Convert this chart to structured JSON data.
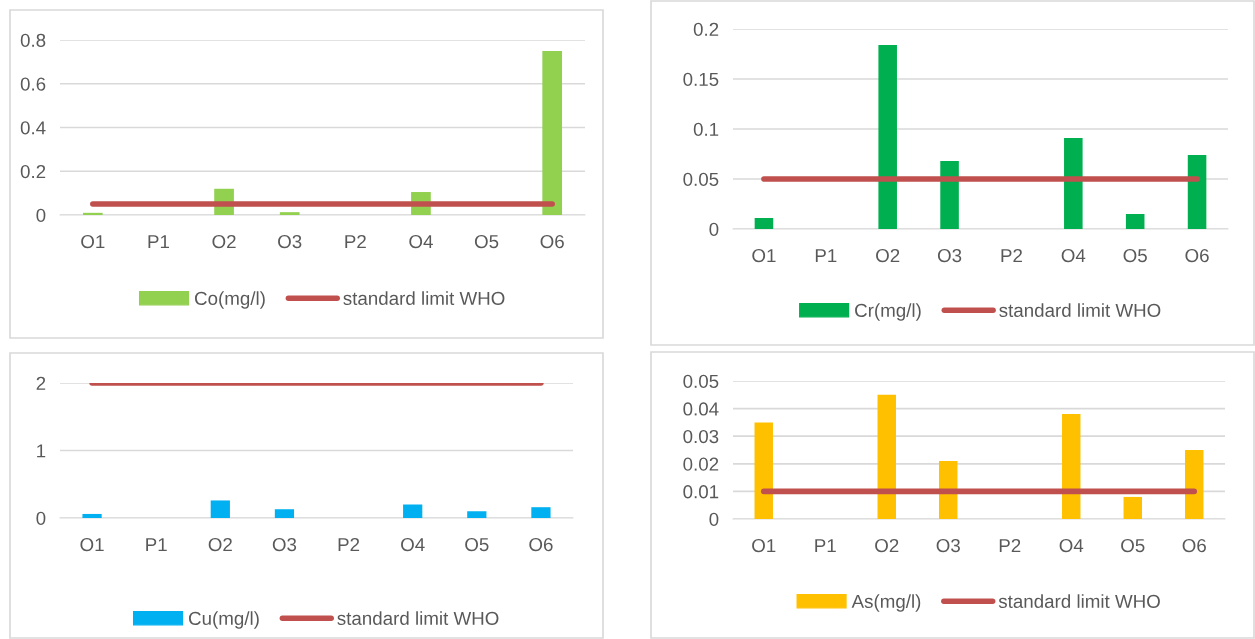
{
  "chart_data": [
    {
      "type": "bar",
      "categories": [
        "O1",
        "P1",
        "O2",
        "O3",
        "P2",
        "O4",
        "O5",
        "O6"
      ],
      "ylim": [
        0,
        0.8
      ],
      "yticks": [
        0,
        0.2,
        0.4,
        0.6,
        0.8
      ],
      "grid": "y",
      "legend": "bottom",
      "series": [
        {
          "name": "Co(mg/l)",
          "color": "#92d050",
          "values": [
            0.01,
            0,
            0.12,
            0.013,
            0,
            0.105,
            0,
            0.75
          ]
        },
        {
          "name": "standard limit WHO",
          "type": "line",
          "color": "#c0504d",
          "values": [
            0.05,
            0.05,
            0.05,
            0.05,
            0.05,
            0.05,
            0.05,
            0.05
          ]
        }
      ]
    },
    {
      "type": "bar",
      "categories": [
        "O1",
        "P1",
        "O2",
        "O3",
        "P2",
        "O4",
        "O5",
        "O6"
      ],
      "ylim": [
        0,
        0.2
      ],
      "yticks": [
        0,
        0.05,
        0.1,
        0.15,
        0.2
      ],
      "grid": "y",
      "legend": "bottom",
      "series": [
        {
          "name": "Cr(mg/l)",
          "color": "#00b050",
          "values": [
            0.011,
            0,
            0.184,
            0.068,
            0,
            0.091,
            0.015,
            0.074
          ]
        },
        {
          "name": "standard limit WHO",
          "type": "line",
          "color": "#c0504d",
          "values": [
            0.05,
            0.05,
            0.05,
            0.05,
            0.05,
            0.05,
            0.05,
            0.05
          ]
        }
      ]
    },
    {
      "type": "bar",
      "categories": [
        "O1",
        "P1",
        "O2",
        "O3",
        "P2",
        "O4",
        "O5",
        "O6"
      ],
      "ylim": [
        0,
        2
      ],
      "yticks": [
        0,
        1,
        2
      ],
      "grid": "y",
      "legend": "bottom",
      "series": [
        {
          "name": "Cu(mg/l)",
          "color": "#00b0f0",
          "values": [
            0.06,
            0,
            0.26,
            0.13,
            0,
            0.2,
            0.1,
            0.16
          ]
        },
        {
          "name": "standard limit WHO",
          "type": "line",
          "color": "#c0504d",
          "values": [
            2,
            2,
            2,
            2,
            2,
            2,
            2,
            2
          ]
        }
      ]
    },
    {
      "type": "bar",
      "categories": [
        "O1",
        "P1",
        "O2",
        "O3",
        "P2",
        "O4",
        "O5",
        "O6"
      ],
      "ylim": [
        0,
        0.05
      ],
      "yticks": [
        0,
        0.01,
        0.02,
        0.03,
        0.04,
        0.05
      ],
      "grid": "y",
      "legend": "bottom",
      "series": [
        {
          "name": "As(mg/l)",
          "color": "#ffc000",
          "values": [
            0.035,
            0,
            0.045,
            0.021,
            0,
            0.038,
            0.008,
            0.025
          ]
        },
        {
          "name": "standard limit WHO",
          "type": "line",
          "color": "#c0504d",
          "values": [
            0.01,
            0.01,
            0.01,
            0.01,
            0.01,
            0.01,
            0.01,
            0.01
          ]
        }
      ]
    }
  ]
}
